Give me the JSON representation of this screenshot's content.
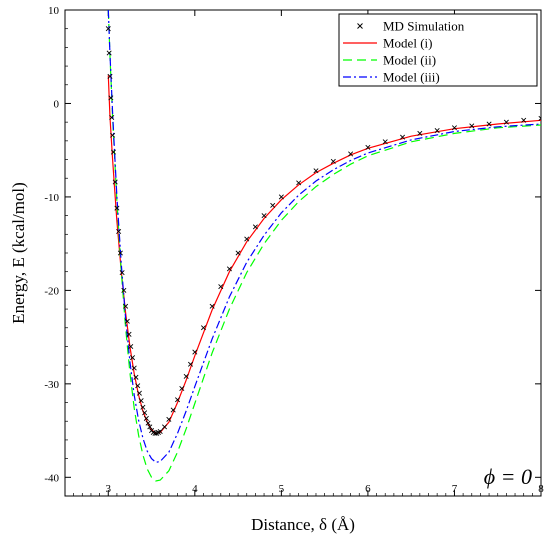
{
  "chart_data": {
    "type": "line",
    "title": "",
    "xlabel": "Distance, δ (Å)",
    "ylabel": "Energy, E (kcal/mol)",
    "xlim": [
      2.5,
      8
    ],
    "ylim": [
      -42,
      10
    ],
    "x_ticks": [
      3,
      4,
      5,
      6,
      7,
      8
    ],
    "y_ticks": [
      10,
      0,
      -10,
      -20,
      -30,
      -40
    ],
    "grid": false,
    "legend_position": "top-right",
    "annotation": "ϕ = 0",
    "series": [
      {
        "name": "MD Simulation",
        "style": "markers",
        "marker": "×",
        "color": "#000000",
        "points": [
          [
            3.0,
            8.0
          ],
          [
            3.01,
            5.4
          ],
          [
            3.02,
            2.9
          ],
          [
            3.03,
            0.6
          ],
          [
            3.04,
            -1.5
          ],
          [
            3.05,
            -3.4
          ],
          [
            3.06,
            -5.2
          ],
          [
            3.08,
            -8.4
          ],
          [
            3.1,
            -11.2
          ],
          [
            3.12,
            -13.7
          ],
          [
            3.14,
            -16.0
          ],
          [
            3.16,
            -18.1
          ],
          [
            3.18,
            -20.0
          ],
          [
            3.2,
            -21.7
          ],
          [
            3.22,
            -23.3
          ],
          [
            3.24,
            -24.7
          ],
          [
            3.26,
            -26.0
          ],
          [
            3.28,
            -27.2
          ],
          [
            3.3,
            -28.3
          ],
          [
            3.32,
            -29.3
          ],
          [
            3.34,
            -30.2
          ],
          [
            3.36,
            -31.0
          ],
          [
            3.38,
            -31.8
          ],
          [
            3.4,
            -32.5
          ],
          [
            3.42,
            -33.1
          ],
          [
            3.44,
            -33.7
          ],
          [
            3.46,
            -34.2
          ],
          [
            3.48,
            -34.6
          ],
          [
            3.5,
            -35.0
          ],
          [
            3.52,
            -35.2
          ],
          [
            3.54,
            -35.3
          ],
          [
            3.56,
            -35.3
          ],
          [
            3.58,
            -35.2
          ],
          [
            3.6,
            -35.1
          ],
          [
            3.65,
            -34.6
          ],
          [
            3.7,
            -33.8
          ],
          [
            3.75,
            -32.8
          ],
          [
            3.8,
            -31.7
          ],
          [
            3.85,
            -30.5
          ],
          [
            3.9,
            -29.2
          ],
          [
            3.95,
            -27.9
          ],
          [
            4.0,
            -26.6
          ],
          [
            4.1,
            -24.0
          ],
          [
            4.2,
            -21.7
          ],
          [
            4.3,
            -19.6
          ],
          [
            4.4,
            -17.7
          ],
          [
            4.5,
            -16.0
          ],
          [
            4.6,
            -14.5
          ],
          [
            4.7,
            -13.2
          ],
          [
            4.8,
            -12.0
          ],
          [
            4.9,
            -10.9
          ],
          [
            5.0,
            -10.0
          ],
          [
            5.2,
            -8.5
          ],
          [
            5.4,
            -7.2
          ],
          [
            5.6,
            -6.2
          ],
          [
            5.8,
            -5.4
          ],
          [
            6.0,
            -4.7
          ],
          [
            6.2,
            -4.1
          ],
          [
            6.4,
            -3.6
          ],
          [
            6.6,
            -3.2
          ],
          [
            6.8,
            -2.9
          ],
          [
            7.0,
            -2.6
          ],
          [
            7.2,
            -2.4
          ],
          [
            7.4,
            -2.2
          ],
          [
            7.6,
            -2.0
          ],
          [
            7.8,
            -1.8
          ],
          [
            8.0,
            -1.6
          ]
        ]
      },
      {
        "name": "Model (i)",
        "style": "solid",
        "color": "#ff0000",
        "points": [
          [
            3.0,
            3.0
          ],
          [
            3.02,
            -1.5
          ],
          [
            3.05,
            -6.0
          ],
          [
            3.08,
            -10.0
          ],
          [
            3.1,
            -12.6
          ],
          [
            3.15,
            -18.0
          ],
          [
            3.2,
            -22.4
          ],
          [
            3.25,
            -26.0
          ],
          [
            3.3,
            -28.9
          ],
          [
            3.35,
            -31.2
          ],
          [
            3.4,
            -32.9
          ],
          [
            3.45,
            -34.1
          ],
          [
            3.5,
            -34.9
          ],
          [
            3.55,
            -35.3
          ],
          [
            3.6,
            -35.2
          ],
          [
            3.7,
            -34.1
          ],
          [
            3.8,
            -32.0
          ],
          [
            3.9,
            -29.6
          ],
          [
            4.0,
            -27.0
          ],
          [
            4.2,
            -22.1
          ],
          [
            4.4,
            -18.0
          ],
          [
            4.6,
            -14.8
          ],
          [
            4.8,
            -12.3
          ],
          [
            5.0,
            -10.3
          ],
          [
            5.2,
            -8.7
          ],
          [
            5.4,
            -7.4
          ],
          [
            5.6,
            -6.4
          ],
          [
            5.8,
            -5.5
          ],
          [
            6.0,
            -4.8
          ],
          [
            6.5,
            -3.5
          ],
          [
            7.0,
            -2.7
          ],
          [
            7.5,
            -2.2
          ],
          [
            8.0,
            -1.8
          ]
        ]
      },
      {
        "name": "Model (ii)",
        "style": "dashed",
        "color": "#00ff00",
        "points": [
          [
            3.0,
            10.0
          ],
          [
            3.02,
            5.0
          ],
          [
            3.05,
            -1.5
          ],
          [
            3.08,
            -7.0
          ],
          [
            3.1,
            -10.5
          ],
          [
            3.15,
            -18.0
          ],
          [
            3.2,
            -24.0
          ],
          [
            3.25,
            -28.8
          ],
          [
            3.3,
            -32.6
          ],
          [
            3.35,
            -35.5
          ],
          [
            3.4,
            -37.6
          ],
          [
            3.45,
            -39.1
          ],
          [
            3.5,
            -40.0
          ],
          [
            3.55,
            -40.4
          ],
          [
            3.6,
            -40.3
          ],
          [
            3.7,
            -39.3
          ],
          [
            3.8,
            -37.3
          ],
          [
            3.9,
            -34.8
          ],
          [
            4.0,
            -32.1
          ],
          [
            4.2,
            -26.7
          ],
          [
            4.4,
            -22.0
          ],
          [
            4.6,
            -18.1
          ],
          [
            4.8,
            -15.0
          ],
          [
            5.0,
            -12.5
          ],
          [
            5.2,
            -10.5
          ],
          [
            5.4,
            -8.9
          ],
          [
            5.6,
            -7.6
          ],
          [
            5.8,
            -6.5
          ],
          [
            6.0,
            -5.6
          ],
          [
            6.5,
            -4.1
          ],
          [
            7.0,
            -3.2
          ],
          [
            7.5,
            -2.6
          ],
          [
            8.0,
            -2.3
          ]
        ]
      },
      {
        "name": "Model (iii)",
        "style": "dashdot",
        "color": "#0000ff",
        "points": [
          [
            3.0,
            10.0
          ],
          [
            3.02,
            5.2
          ],
          [
            3.05,
            -1.0
          ],
          [
            3.08,
            -6.5
          ],
          [
            3.1,
            -10.0
          ],
          [
            3.15,
            -17.2
          ],
          [
            3.2,
            -23.0
          ],
          [
            3.25,
            -27.6
          ],
          [
            3.3,
            -31.2
          ],
          [
            3.35,
            -33.9
          ],
          [
            3.4,
            -35.8
          ],
          [
            3.45,
            -37.2
          ],
          [
            3.5,
            -38.0
          ],
          [
            3.55,
            -38.4
          ],
          [
            3.6,
            -38.3
          ],
          [
            3.7,
            -37.3
          ],
          [
            3.8,
            -35.3
          ],
          [
            3.9,
            -32.9
          ],
          [
            4.0,
            -30.3
          ],
          [
            4.2,
            -25.2
          ],
          [
            4.4,
            -20.7
          ],
          [
            4.6,
            -17.0
          ],
          [
            4.8,
            -14.1
          ],
          [
            5.0,
            -11.7
          ],
          [
            5.2,
            -9.8
          ],
          [
            5.4,
            -8.3
          ],
          [
            5.6,
            -7.1
          ],
          [
            5.8,
            -6.1
          ],
          [
            6.0,
            -5.3
          ],
          [
            6.5,
            -3.9
          ],
          [
            7.0,
            -3.0
          ],
          [
            7.5,
            -2.5
          ],
          [
            8.0,
            -2.2
          ]
        ]
      }
    ]
  }
}
